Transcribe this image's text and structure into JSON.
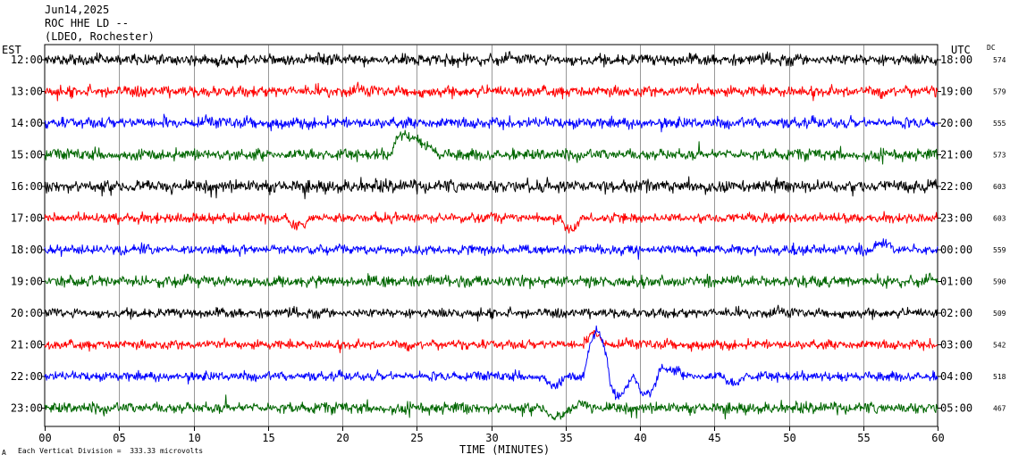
{
  "header": {
    "date": "Jun14,2025",
    "station": "ROC HHE LD --",
    "network": "(LDEO, Rochester)"
  },
  "labels": {
    "left_tz": "EST",
    "right_tz": "UTC",
    "dc": "DC",
    "scale_note": "Each Vertical Division =  333.33 microvolts",
    "corner_mark": "A"
  },
  "colors": {
    "cycle": [
      "#000000",
      "#ff0000",
      "#0000ff",
      "#006600"
    ],
    "grid": "#000000"
  },
  "chart_data": {
    "type": "line",
    "title": "",
    "xlabel": "TIME (MINUTES)",
    "ylabel": "",
    "xlim": [
      0,
      60
    ],
    "x_ticks": [
      "00",
      "05",
      "10",
      "15",
      "20",
      "25",
      "30",
      "35",
      "40",
      "45",
      "50",
      "55",
      "60"
    ],
    "grid": true,
    "rows": [
      {
        "est": "12:00",
        "utc": "18:00",
        "dc": "574",
        "color": "#000000",
        "amp": 7,
        "events": []
      },
      {
        "est": "13:00",
        "utc": "19:00",
        "dc": "579",
        "color": "#ff0000",
        "amp": 7,
        "events": []
      },
      {
        "est": "14:00",
        "utc": "20:00",
        "dc": "555",
        "color": "#0000ff",
        "amp": 7,
        "events": []
      },
      {
        "est": "15:00",
        "utc": "21:00",
        "dc": "573",
        "color": "#006600",
        "amp": 7,
        "events": [
          {
            "start": 23.3,
            "peak": 23.9,
            "end": 26.5,
            "height": -22
          }
        ]
      },
      {
        "est": "16:00",
        "utc": "22:00",
        "dc": "603",
        "color": "#000000",
        "amp": 8,
        "events": []
      },
      {
        "est": "17:00",
        "utc": "23:00",
        "dc": "603",
        "color": "#ff0000",
        "amp": 6,
        "events": [
          {
            "start": 16.2,
            "peak": 16.9,
            "end": 17.8,
            "height": 10
          },
          {
            "start": 34.7,
            "peak": 35.2,
            "end": 36.2,
            "height": 12
          }
        ]
      },
      {
        "est": "18:00",
        "utc": "00:00",
        "dc": "559",
        "color": "#0000ff",
        "amp": 6,
        "events": [
          {
            "start": 55.5,
            "peak": 56.2,
            "end": 57.3,
            "height": -6
          }
        ]
      },
      {
        "est": "19:00",
        "utc": "01:00",
        "dc": "590",
        "color": "#006600",
        "amp": 7,
        "events": []
      },
      {
        "est": "20:00",
        "utc": "02:00",
        "dc": "509",
        "color": "#000000",
        "amp": 6,
        "events": []
      },
      {
        "est": "21:00",
        "utc": "03:00",
        "dc": "542",
        "color": "#ff0000",
        "amp": 6,
        "events": [
          {
            "start": 36.3,
            "peak": 37.0,
            "end": 37.6,
            "height": -14
          }
        ]
      },
      {
        "est": "22:00",
        "utc": "04:00",
        "dc": "518",
        "color": "#0000ff",
        "amp": 6,
        "events": [
          {
            "start": 33.5,
            "peak": 34.2,
            "end": 35.2,
            "height": 9
          },
          {
            "start": 36.2,
            "peak": 37.1,
            "end": 38.0,
            "height": -50
          },
          {
            "start": 37.8,
            "peak": 38.5,
            "end": 39.5,
            "height": 22
          },
          {
            "start": 39.6,
            "peak": 40.4,
            "end": 41.3,
            "height": 20
          },
          {
            "start": 41.0,
            "peak": 41.6,
            "end": 43.2,
            "height": -9
          },
          {
            "start": 45.5,
            "peak": 46.3,
            "end": 47.0,
            "height": 8
          }
        ]
      },
      {
        "est": "23:00",
        "utc": "05:00",
        "dc": "467",
        "color": "#006600",
        "amp": 7,
        "events": [
          {
            "start": 33.5,
            "peak": 34.5,
            "end": 35.5,
            "height": 10
          },
          {
            "start": 35.5,
            "peak": 36.2,
            "end": 37.0,
            "height": -5
          }
        ]
      }
    ]
  }
}
